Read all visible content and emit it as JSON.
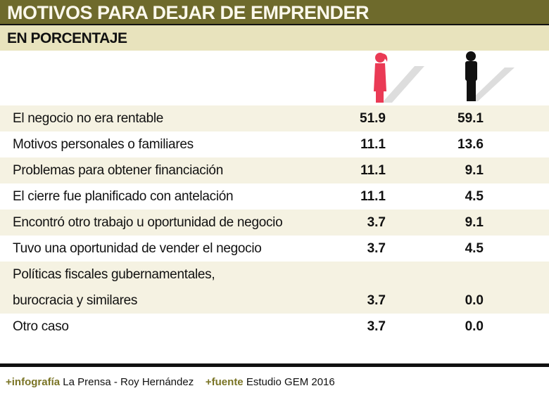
{
  "title": "MOTIVOS PARA DEJAR DE EMPRENDER",
  "subtitle": "EN PORCENTAJE",
  "colors": {
    "title_bg": "#6e6a2c",
    "subtitle_bg": "#e8e3bd",
    "woman": "#ea3a55",
    "man": "#111111"
  },
  "icons": {
    "women": "woman-figure-icon",
    "men": "man-figure-icon"
  },
  "rows": [
    {
      "label": "El negocio no era rentable",
      "women": "51.9",
      "men": "59.1"
    },
    {
      "label": "Motivos personales o familiares",
      "women": "11.1",
      "men": "13.6"
    },
    {
      "label": "Problemas para obtener financiación",
      "women": "11.1",
      "men": "9.1"
    },
    {
      "label": "El cierre fue planificado con antelación",
      "women": "11.1",
      "men": "4.5"
    },
    {
      "label": "Encontró otro trabajo u oportunidad de negocio",
      "women": "3.7",
      "men": "9.1"
    },
    {
      "label": "Tuvo una oportunidad de vender el negocio",
      "women": "3.7",
      "men": "4.5"
    },
    {
      "label": "Políticas fiscales gubernamentales,",
      "label2": "burocracia y similares",
      "women": "3.7",
      "men": "0.0"
    },
    {
      "label": "Otro caso",
      "women": "3.7",
      "men": "0.0"
    }
  ],
  "footer": {
    "credit_label": "+infografía",
    "credit": "La Prensa - Roy Hernández",
    "source_label": "+fuente",
    "source": "Estudio GEM 2016"
  }
}
